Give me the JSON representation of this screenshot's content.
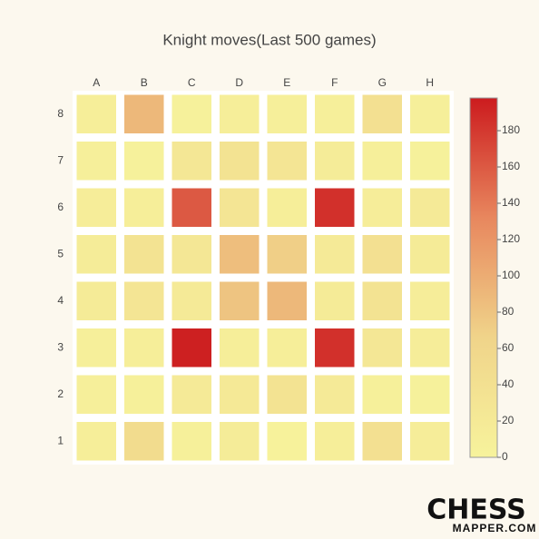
{
  "chart_data": {
    "type": "heatmap",
    "title": "Knight moves(Last 500 games)",
    "x": [
      "A",
      "B",
      "C",
      "D",
      "E",
      "F",
      "G",
      "H"
    ],
    "y": [
      "8",
      "7",
      "6",
      "5",
      "4",
      "3",
      "2",
      "1"
    ],
    "z": [
      [
        10,
        90,
        5,
        10,
        8,
        8,
        40,
        8
      ],
      [
        8,
        5,
        25,
        35,
        30,
        15,
        8,
        5
      ],
      [
        12,
        10,
        160,
        30,
        10,
        185,
        12,
        20
      ],
      [
        15,
        35,
        25,
        85,
        70,
        20,
        40,
        18
      ],
      [
        18,
        30,
        20,
        80,
        90,
        18,
        35,
        12
      ],
      [
        8,
        10,
        195,
        10,
        10,
        185,
        25,
        12
      ],
      [
        8,
        6,
        20,
        22,
        35,
        20,
        6,
        5
      ],
      [
        10,
        50,
        6,
        15,
        3,
        10,
        40,
        12
      ]
    ],
    "zlim": [
      0,
      198
    ],
    "zticks": [
      0,
      20,
      40,
      60,
      80,
      100,
      120,
      140,
      160,
      180
    ],
    "colors": [
      "#f7f39c",
      "#f0d48a",
      "#e8875e",
      "#cc1b1e"
    ],
    "logo": "CHESS",
    "logo_sub": "MAPPER.COM"
  }
}
